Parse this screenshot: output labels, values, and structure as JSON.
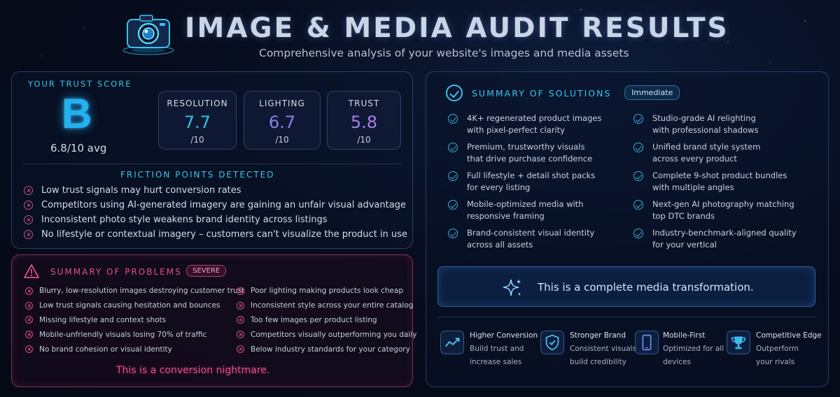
{
  "header": {
    "title": "IMAGE & MEDIA AUDIT RESULTS",
    "subtitle": "Comprehensive analysis of your website's images and media assets",
    "icon": "camera-icon"
  },
  "score": {
    "label": "YOUR TRUST SCORE",
    "grade": "B",
    "average": "6.8/10 avg",
    "metrics": [
      {
        "name": "RESOLUTION",
        "value": "7.7",
        "denominator": "/10",
        "color": "#2fc4e8"
      },
      {
        "name": "LIGHTING",
        "value": "6.7",
        "denominator": "/10",
        "color": "#8c7ee8"
      },
      {
        "name": "TRUST",
        "value": "5.8",
        "denominator": "/10",
        "color": "#a77ee8"
      }
    ]
  },
  "friction": {
    "title": "FRICTION POINTS DETECTED",
    "items": [
      "Low trust signals may hurt conversion rates",
      "Competitors using AI-generated imagery are gaining an unfair visual advantage",
      "Inconsistent photo style weakens brand identity across listings",
      "No lifestyle or contextual imagery – customers can't visualize the product in use"
    ]
  },
  "problems": {
    "title": "SUMMARY OF PROBLEMS",
    "badge": "SEVERE",
    "left": [
      "Blurry, low-resolution images destroying customer trust",
      "Low trust signals causing hesitation and bounces",
      "Missing lifestyle and context shots",
      "Mobile-unfriendly visuals losing 70% of traffic",
      "No brand cohesion or visual identity"
    ],
    "right": [
      "Poor lighting making products look cheap",
      "Inconsistent style across your entire catalog",
      "Too few images per product listing",
      "Competitors visually outperforming you daily",
      "Below industry standards for your category"
    ],
    "footer": "This is a conversion nightmare."
  },
  "solutions": {
    "title": "SUMMARY OF SOLUTIONS",
    "badge": "Immediate",
    "left": [
      {
        "l1": "4K+ regenerated product images",
        "l2": "with pixel-perfect clarity"
      },
      {
        "l1": "Premium, trustworthy visuals",
        "l2": "that drive purchase confidence"
      },
      {
        "l1": "Full lifestyle + detail shot packs",
        "l2": "for every listing"
      },
      {
        "l1": "Mobile-optimized media with",
        "l2": "responsive framing"
      },
      {
        "l1": "Brand-consistent visual identity",
        "l2": "across all assets"
      }
    ],
    "right": [
      {
        "l1": "Studio-grade AI relighting",
        "l2": "with professional shadows"
      },
      {
        "l1": "Unified brand style system",
        "l2": "across every product"
      },
      {
        "l1": "Complete 9-shot product bundles",
        "l2": "with multiple angles"
      },
      {
        "l1": "Next-gen AI photography matching",
        "l2": "top DTC brands"
      },
      {
        "l1": "Industry-benchmark-aligned quality",
        "l2": "for your vertical"
      }
    ],
    "transformation": "This is a complete media transformation."
  },
  "benefits": [
    {
      "icon": "trend-up-icon",
      "title": "Higher Conversion",
      "d1": "Build trust and",
      "d2": "increase sales"
    },
    {
      "icon": "shield-check-icon",
      "title": "Stronger Brand",
      "d1": "Consistent visuals",
      "d2": "build credibility"
    },
    {
      "icon": "mobile-phone-icon",
      "title": "Mobile-First",
      "d1": "Optimized for all",
      "d2": "devices"
    },
    {
      "icon": "trophy-icon",
      "title": "Competitive Edge",
      "d1": "Outperform",
      "d2": "your rivals"
    }
  ]
}
